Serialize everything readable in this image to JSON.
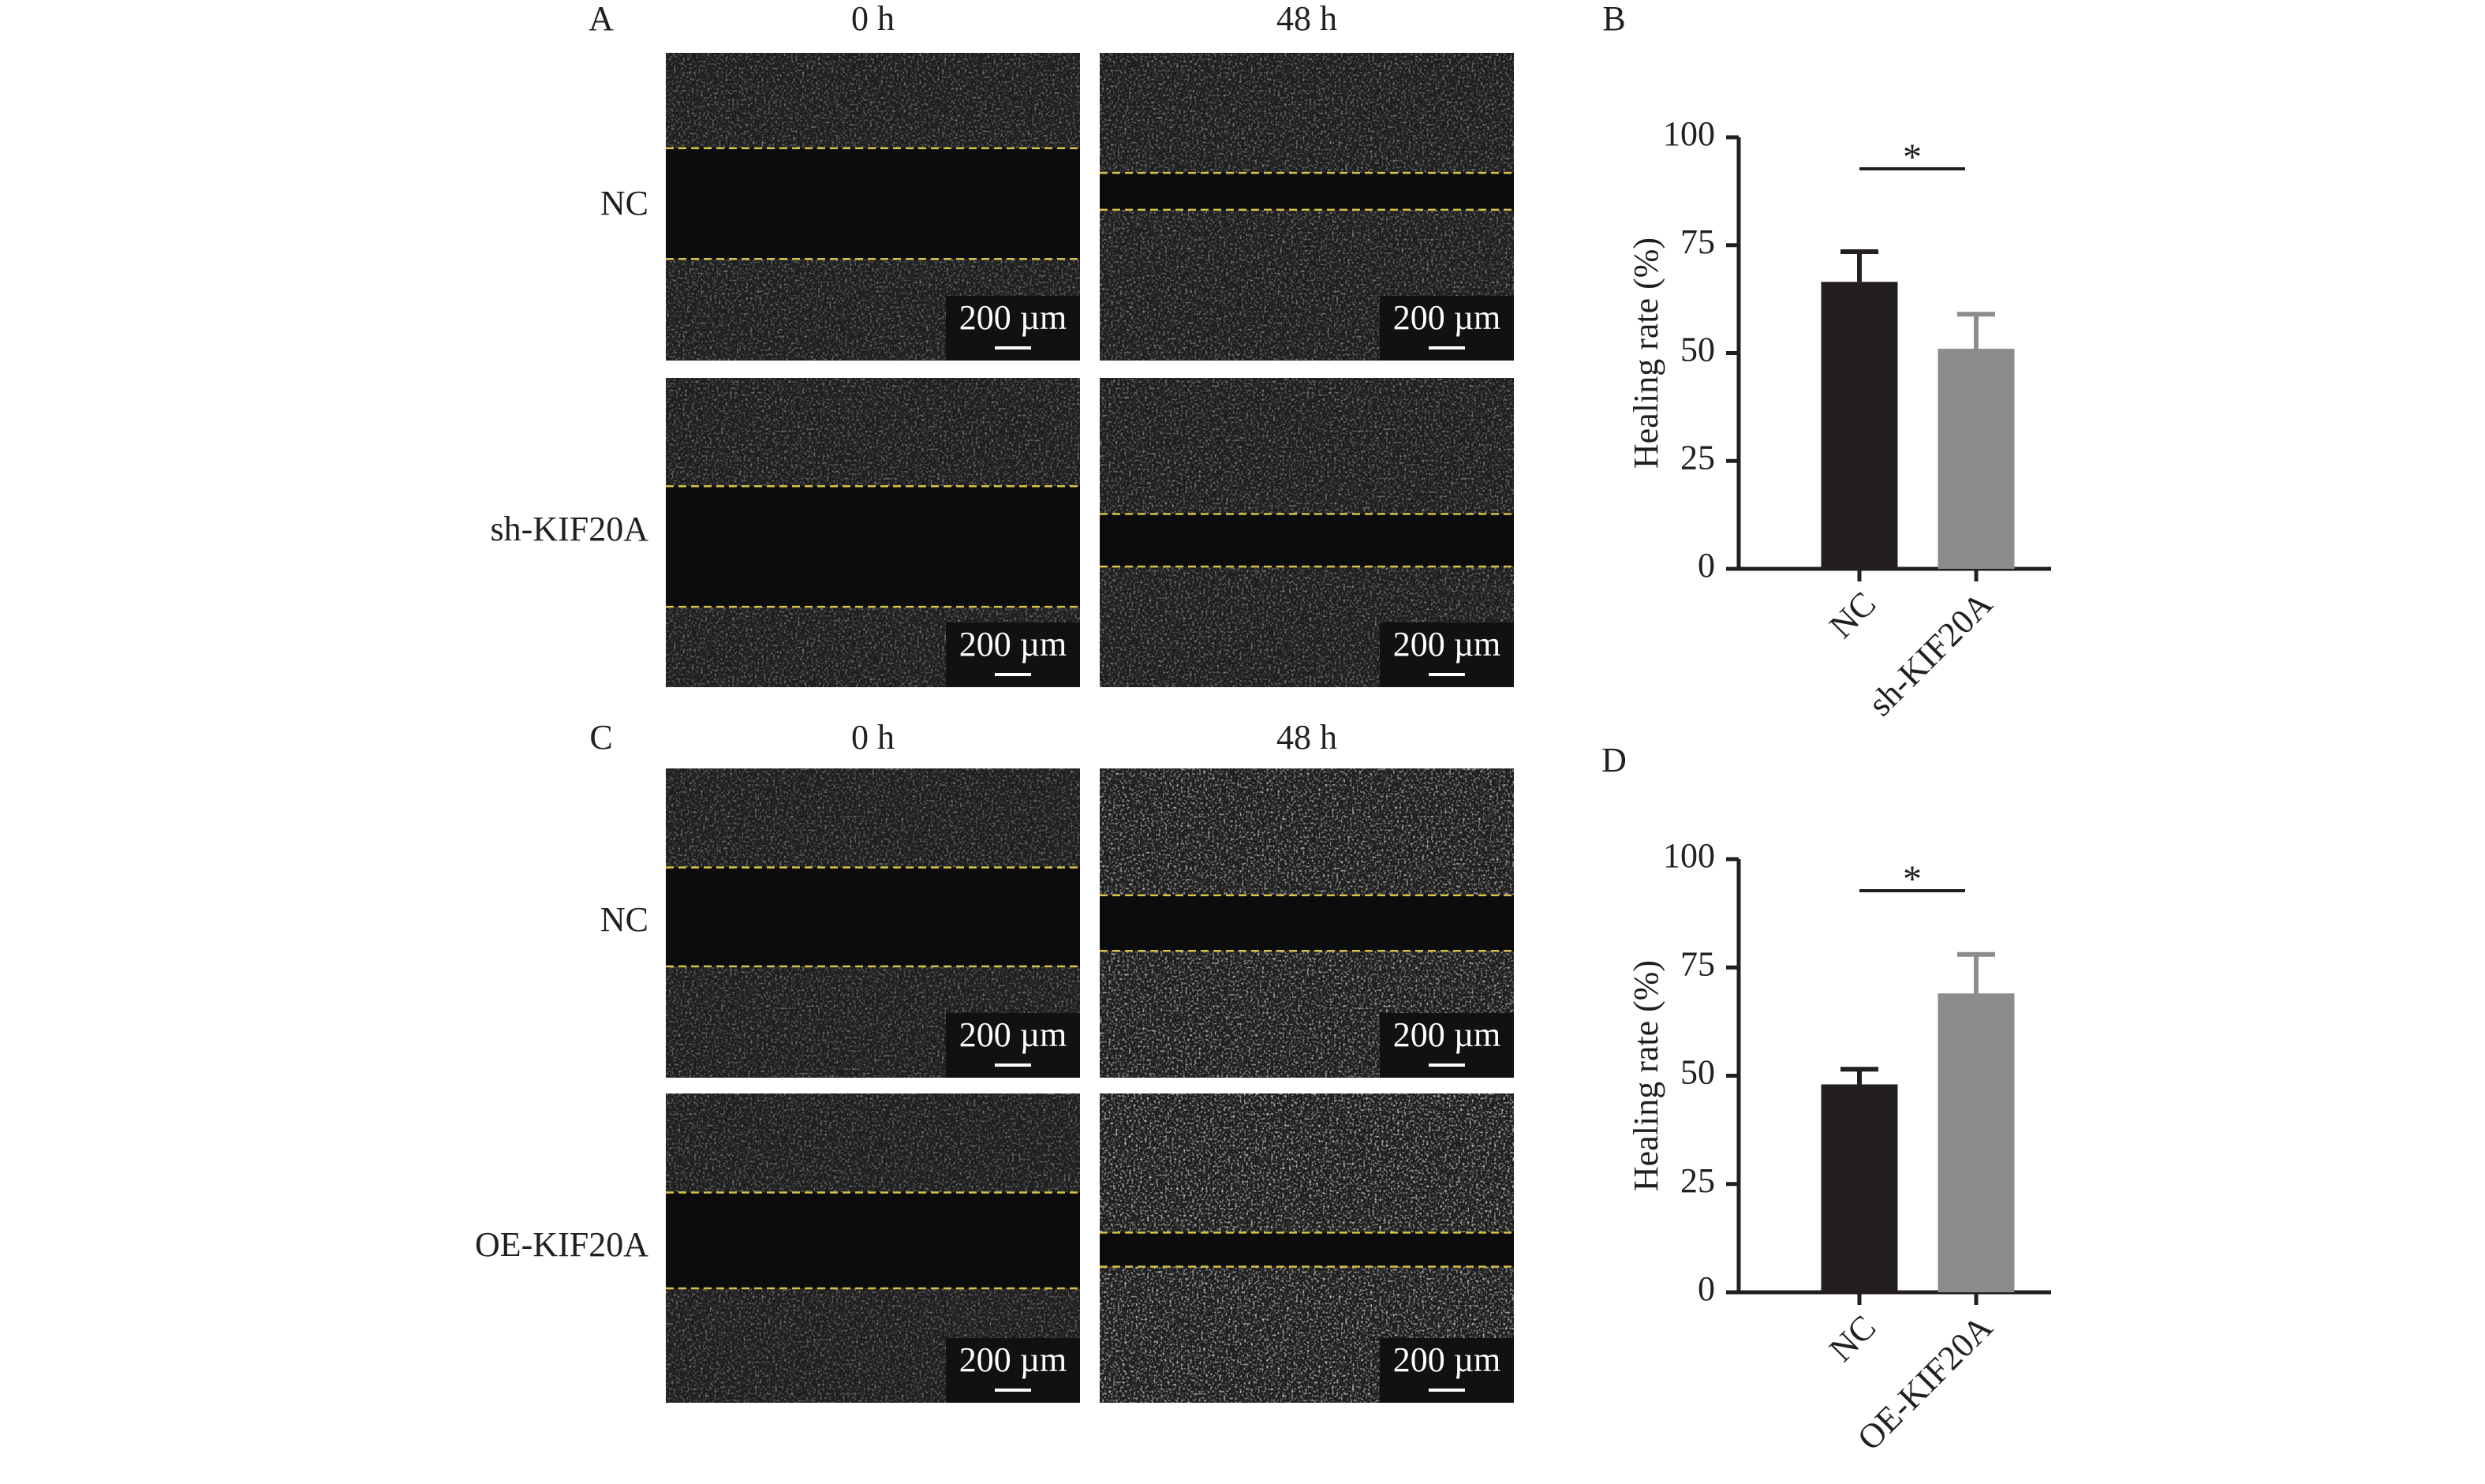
{
  "panels": [
    {
      "label": "A",
      "columns": [
        "0 h",
        "48 h"
      ],
      "rows": [
        "NC",
        "sh-KIF20A"
      ],
      "scale_bar": "200 µm"
    },
    {
      "label": "C",
      "columns": [
        "0 h",
        "48 h"
      ],
      "rows": [
        "NC",
        "OE-KIF20A"
      ],
      "scale_bar": "200 µm"
    }
  ],
  "chart_data": [
    {
      "type": "bar",
      "panel_label": "B",
      "ylabel": "Healing rate (%)",
      "categories": [
        "NC",
        "sh-KIF20A"
      ],
      "values": [
        66.5,
        51
      ],
      "errors": [
        7,
        8
      ],
      "colors": [
        "#231f20",
        "#8c8c8c"
      ],
      "ylim": [
        0,
        100
      ],
      "yticks": [
        0,
        25,
        50,
        75,
        100
      ],
      "significance": "*"
    },
    {
      "type": "bar",
      "panel_label": "D",
      "ylabel": "Healing rate (%)",
      "categories": [
        "NC",
        "OE-KIF20A"
      ],
      "values": [
        48,
        69
      ],
      "errors": [
        3.5,
        9
      ],
      "colors": [
        "#231f20",
        "#8c8c8c"
      ],
      "ylim": [
        0,
        100
      ],
      "yticks": [
        0,
        25,
        50,
        75,
        100
      ],
      "significance": "*"
    }
  ]
}
